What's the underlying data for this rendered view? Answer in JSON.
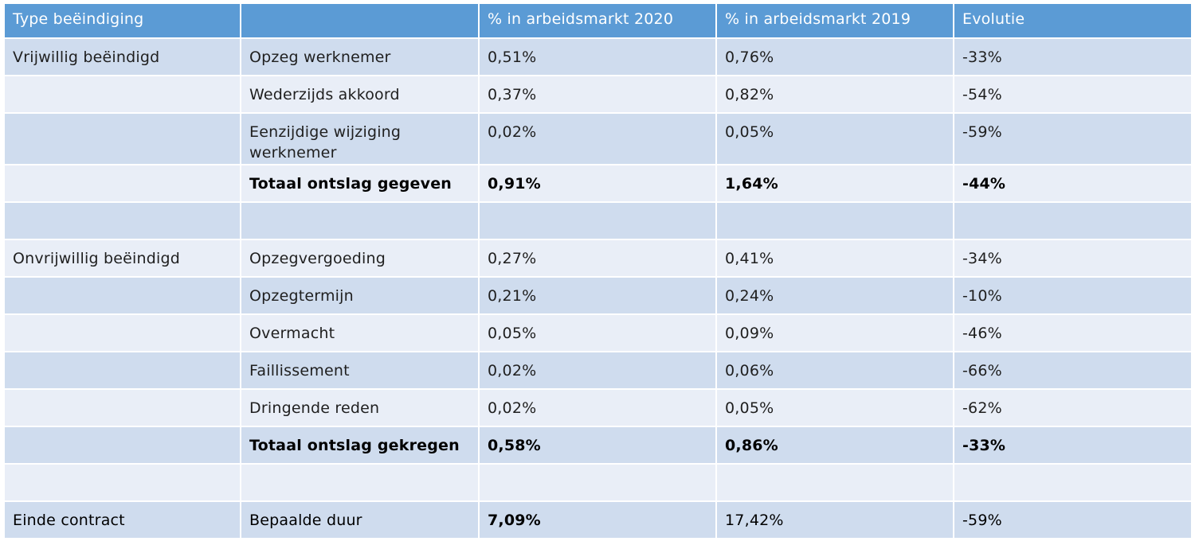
{
  "headers": [
    "Type beëindiging",
    "",
    "% in arbeidsmarkt 2020",
    "% in arbeidsmarkt 2019",
    "Evolutie"
  ],
  "rows": [
    {
      "type": "Vrijwillig beëindigd",
      "sub": "Opzeg werknemer",
      "p2020": "0,51%",
      "p2019": "0,76%",
      "evo": "-33%"
    },
    {
      "type": "",
      "sub": "Wederzijds akkoord",
      "p2020": "0,37%",
      "p2019": "0,82%",
      "evo": "-54%"
    },
    {
      "type": "",
      "sub": "Eenzijdige wijziging werknemer",
      "p2020": "0,02%",
      "p2019": "0,05%",
      "evo": "-59%"
    },
    {
      "type": "",
      "sub": "Totaal ontslag gegeven",
      "p2020": "0,91%",
      "p2019": "1,64%",
      "evo": "-44%"
    },
    {
      "type": "",
      "sub": "",
      "p2020": "",
      "p2019": "",
      "evo": ""
    },
    {
      "type": "Onvrijwillig beëindigd",
      "sub": "Opzegvergoeding",
      "p2020": "0,27%",
      "p2019": "0,41%",
      "evo": "-34%"
    },
    {
      "type": "",
      "sub": "Opzegtermijn",
      "p2020": "0,21%",
      "p2019": "0,24%",
      "evo": "-10%"
    },
    {
      "type": "",
      "sub": "Overmacht",
      "p2020": "0,05%",
      "p2019": "0,09%",
      "evo": "-46%"
    },
    {
      "type": "",
      "sub": "Faillissement",
      "p2020": "0,02%",
      "p2019": "0,06%",
      "evo": "-66%"
    },
    {
      "type": "",
      "sub": "Dringende reden",
      "p2020": "0,02%",
      "p2019": "0,05%",
      "evo": "-62%"
    },
    {
      "type": "",
      "sub": "Totaal ontslag gekregen",
      "p2020": "0,58%",
      "p2019": "0,86%",
      "evo": "-33%"
    },
    {
      "type": "",
      "sub": "",
      "p2020": "",
      "p2019": "",
      "evo": ""
    },
    {
      "type": "Einde contract",
      "sub": "Bepaalde duur",
      "p2020": "7,09%",
      "p2019": "17,42%",
      "evo": "-59%"
    }
  ]
}
